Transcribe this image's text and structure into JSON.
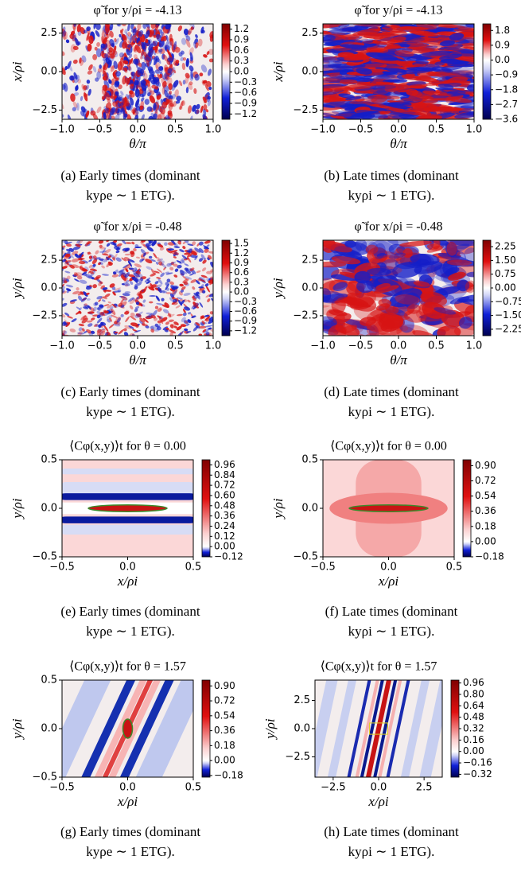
{
  "panels": [
    {
      "title": "φ̃ for y/ρi = -4.13",
      "xlabel": "θ/π",
      "ylabel": "x/ρi",
      "xlim": [
        -1,
        1
      ],
      "ylim": [
        -3.1,
        3.1
      ],
      "xticks": [
        {
          "value": -1,
          "label": "−1.0"
        },
        {
          "value": -0.5,
          "label": "−0.5"
        },
        {
          "value": 0,
          "label": "0.0"
        },
        0.5,
        {
          "value": 1,
          "label": "1.0"
        }
      ],
      "yticks": [
        {
          "value": -2.5,
          "label": "−2.5"
        },
        {
          "value": 0,
          "label": "0.0"
        },
        2.5
      ],
      "clim": [
        -1.35,
        1.35
      ],
      "cticks": [
        1.2,
        0.9,
        0.6,
        0.3,
        {
          "value": 0,
          "label": "0.0"
        },
        {
          "value": -0.3,
          "label": "−0.3"
        },
        {
          "value": -0.6,
          "label": "−0.6"
        },
        {
          "value": -0.9,
          "label": "−0.9"
        },
        {
          "value": -1.2,
          "label": "−1.2"
        }
      ],
      "caption": [
        "(a) Early times (dominant",
        "kyρe ∼ 1 ETG)."
      ]
    },
    {
      "title": "φ̃ for y/ρi = -4.13",
      "xlabel": "θ/π",
      "ylabel": "x/ρi",
      "xlim": [
        -1,
        1
      ],
      "ylim": [
        -3.1,
        3.1
      ],
      "xticks": [
        {
          "value": -1,
          "label": "−1.0"
        },
        {
          "value": -0.5,
          "label": "−0.5"
        },
        {
          "value": 0,
          "label": "0.0"
        },
        0.5,
        {
          "value": 1,
          "label": "1.0"
        }
      ],
      "yticks": [
        {
          "value": -2.5,
          "label": "−2.5"
        },
        {
          "value": 0,
          "label": "0.0"
        },
        2.5
      ],
      "clim": [
        -3.6,
        2.2
      ],
      "cticks": [
        1.8,
        0.9,
        {
          "value": 0,
          "label": "0.0"
        },
        {
          "value": -0.9,
          "label": "−0.9"
        },
        {
          "value": -1.8,
          "label": "−1.8"
        },
        {
          "value": -2.7,
          "label": "−2.7"
        },
        {
          "value": -3.6,
          "label": "−3.6"
        }
      ],
      "caption": [
        "(b) Late times (dominant",
        "kyρi ∼ 1 ETG)."
      ]
    },
    {
      "title": "φ̃ for x/ρi = -0.48",
      "xlabel": "θ/π",
      "ylabel": "y/ρi",
      "xlim": [
        -1,
        1
      ],
      "ylim": [
        -4.3,
        4.3
      ],
      "xticks": [
        {
          "value": -1,
          "label": "−1.0"
        },
        {
          "value": -0.5,
          "label": "−0.5"
        },
        {
          "value": 0,
          "label": "0.0"
        },
        0.5,
        {
          "value": 1,
          "label": "1.0"
        }
      ],
      "yticks": [
        {
          "value": -2.5,
          "label": "−2.5"
        },
        {
          "value": 0,
          "label": "0.0"
        },
        2.5
      ],
      "clim": [
        -1.35,
        1.6
      ],
      "cticks": [
        1.5,
        1.2,
        0.9,
        0.6,
        0.3,
        {
          "value": 0,
          "label": "0.0"
        },
        {
          "value": -0.3,
          "label": "−0.3"
        },
        {
          "value": -0.6,
          "label": "−0.6"
        },
        {
          "value": -0.9,
          "label": "−0.9"
        },
        {
          "value": -1.2,
          "label": "−1.2"
        }
      ],
      "caption": [
        "(c) Early times (dominant",
        "kyρe ∼ 1 ETG)."
      ]
    },
    {
      "title": "φ̃ for x/ρi = -0.48",
      "xlabel": "θ/π",
      "ylabel": "y/ρi",
      "xlim": [
        -1,
        1
      ],
      "ylim": [
        -4.3,
        4.3
      ],
      "xticks": [
        {
          "value": -1,
          "label": "−1.0"
        },
        {
          "value": -0.5,
          "label": "−0.5"
        },
        {
          "value": 0,
          "label": "0.0"
        },
        0.5,
        {
          "value": 1,
          "label": "1.0"
        }
      ],
      "yticks": [
        {
          "value": -2.5,
          "label": "−2.5"
        },
        {
          "value": 0,
          "label": "0.0"
        },
        2.5
      ],
      "clim": [
        -2.6,
        2.6
      ],
      "cticks": [
        2.25,
        {
          "value": 1.5,
          "label": "1.50"
        },
        0.75,
        {
          "value": 0,
          "label": "0.00"
        },
        {
          "value": -0.75,
          "label": "−0.75"
        },
        {
          "value": -1.5,
          "label": "−1.50"
        },
        {
          "value": -2.25,
          "label": "−2.25"
        }
      ],
      "caption": [
        "(d) Late times (dominant",
        "kyρi ∼ 1 ETG)."
      ]
    },
    {
      "title": "⟨Cφ(x,y)⟩t for θ = 0.00",
      "xlabel": "x/ρi",
      "ylabel": "y/ρi",
      "xlim": [
        -0.5,
        0.5
      ],
      "ylim": [
        -0.5,
        0.5
      ],
      "xticks": [
        {
          "value": -0.5,
          "label": "−0.5"
        },
        {
          "value": 0,
          "label": "0.0"
        },
        0.5
      ],
      "yticks": [
        {
          "value": -0.5,
          "label": "−0.5"
        },
        {
          "value": 0,
          "label": "0.0"
        },
        0.5
      ],
      "clim": [
        -0.12,
        1.02
      ],
      "cticks": [
        0.96,
        0.84,
        0.72,
        {
          "value": 0.6,
          "label": "0.60"
        },
        0.48,
        0.36,
        0.24,
        0.12,
        {
          "value": 0,
          "label": "0.00"
        },
        {
          "value": -0.12,
          "label": "−0.12"
        }
      ],
      "caption": [
        "(e) Early times (dominant",
        "kyρe ∼ 1 ETG)."
      ]
    },
    {
      "title": "⟨Cφ(x,y)⟩t for θ = 0.00",
      "xlabel": "x/ρi",
      "ylabel": "y/ρi",
      "xlim": [
        -0.5,
        0.5
      ],
      "ylim": [
        -0.5,
        0.5
      ],
      "xticks": [
        {
          "value": -0.5,
          "label": "−0.5"
        },
        {
          "value": 0,
          "label": "0.0"
        },
        0.5
      ],
      "yticks": [
        {
          "value": -0.5,
          "label": "−0.5"
        },
        {
          "value": 0,
          "label": "0.0"
        },
        0.5
      ],
      "clim": [
        -0.18,
        0.97
      ],
      "cticks": [
        {
          "value": 0.9,
          "label": "0.90"
        },
        0.72,
        0.54,
        0.36,
        0.18,
        {
          "value": 0,
          "label": "0.00"
        },
        {
          "value": -0.18,
          "label": "−0.18"
        }
      ],
      "caption": [
        "(f) Late times (dominant",
        "kyρi ∼ 1 ETG)."
      ]
    },
    {
      "title": "⟨Cφ(x,y)⟩t for θ = 1.57",
      "xlabel": "x/ρi",
      "ylabel": "y/ρi",
      "xlim": [
        -0.5,
        0.5
      ],
      "ylim": [
        -0.5,
        0.5
      ],
      "xticks": [
        {
          "value": -0.5,
          "label": "−0.5"
        },
        {
          "value": 0,
          "label": "0.0"
        },
        0.5
      ],
      "yticks": [
        {
          "value": -0.5,
          "label": "−0.5"
        },
        {
          "value": 0,
          "label": "0.0"
        },
        0.5
      ],
      "clim": [
        -0.2,
        0.97
      ],
      "cticks": [
        {
          "value": 0.9,
          "label": "0.90"
        },
        0.72,
        0.54,
        0.36,
        0.18,
        {
          "value": 0,
          "label": "0.00"
        },
        {
          "value": -0.18,
          "label": "−0.18"
        }
      ],
      "caption": [
        "(g) Early times (dominant",
        "kyρe ∼ 1 ETG)."
      ]
    },
    {
      "title": "⟨Cφ(x,y)⟩t for θ = 1.57",
      "xlabel": "x/ρi",
      "ylabel": "y/ρi",
      "xlim": [
        -3.5,
        3.5
      ],
      "ylim": [
        -4.3,
        4.3
      ],
      "xticks": [
        {
          "value": -2.5,
          "label": "−2.5"
        },
        {
          "value": 0,
          "label": "0.0"
        },
        2.5
      ],
      "yticks": [
        {
          "value": -2.5,
          "label": "−2.5"
        },
        {
          "value": 0,
          "label": "0.0"
        },
        2.5
      ],
      "clim": [
        -0.36,
        1.0
      ],
      "cticks": [
        0.96,
        {
          "value": 0.8,
          "label": "0.80"
        },
        0.64,
        0.48,
        0.32,
        0.16,
        {
          "value": 0,
          "label": "0.00"
        },
        {
          "value": -0.16,
          "label": "−0.16"
        },
        {
          "value": -0.32,
          "label": "−0.32"
        }
      ],
      "caption": [
        "(h) Late times (dominant",
        "kyρi ∼ 1 ETG)."
      ]
    }
  ]
}
